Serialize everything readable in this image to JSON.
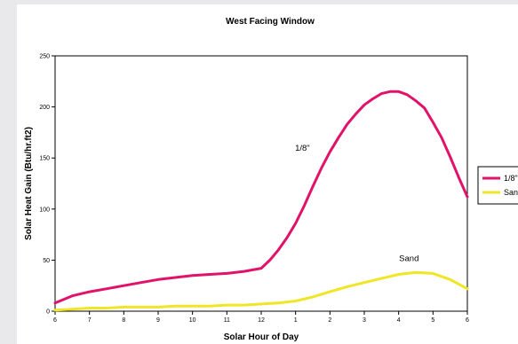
{
  "chart_data": {
    "type": "line",
    "title": "West Facing Window",
    "xlabel": "Solar Hour of Day",
    "ylabel": "Solar Heat Gain (Btu/hr.ft2)",
    "x_tick_labels": [
      "6",
      "7",
      "8",
      "9",
      "10",
      "11",
      "12",
      "1",
      "2",
      "3",
      "4",
      "5",
      "6"
    ],
    "y_ticks": [
      0,
      50,
      100,
      150,
      200,
      250
    ],
    "ylim": [
      0,
      250
    ],
    "xlim": [
      6,
      18
    ],
    "grid": false,
    "legend": {
      "placement": "right",
      "entries": [
        "1/8\"",
        "Sand"
      ]
    },
    "annotations": [
      {
        "text": "1/8\"",
        "x": 13.2,
        "y": 157
      },
      {
        "text": "Sand",
        "x": 16.3,
        "y": 49
      }
    ],
    "series": [
      {
        "name": "1/8\"",
        "color": "#e0126a",
        "x": [
          6,
          6.5,
          7,
          7.5,
          8,
          8.5,
          9,
          9.5,
          10,
          10.5,
          11,
          11.5,
          12,
          12.25,
          12.5,
          12.75,
          13,
          13.25,
          13.5,
          13.75,
          14,
          14.25,
          14.5,
          14.75,
          15,
          15.25,
          15.5,
          15.75,
          16,
          16.25,
          16.5,
          16.75,
          17,
          17.25,
          17.5,
          17.75,
          18
        ],
        "y": [
          8,
          15,
          19,
          22,
          25,
          28,
          31,
          33,
          35,
          36,
          37,
          39,
          42,
          50,
          60,
          72,
          86,
          103,
          122,
          140,
          156,
          170,
          183,
          193,
          202,
          208,
          213,
          215,
          215,
          212,
          206,
          199,
          185,
          170,
          151,
          131,
          112
        ]
      },
      {
        "name": "Sand",
        "color": "#f0e626",
        "x": [
          6,
          6.5,
          7,
          7.5,
          8,
          8.5,
          9,
          9.5,
          10,
          10.5,
          11,
          11.5,
          12,
          12.5,
          13,
          13.5,
          14,
          14.5,
          15,
          15.5,
          16,
          16.5,
          17,
          17.5,
          18
        ],
        "y": [
          1,
          2,
          3,
          3,
          4,
          4,
          4,
          5,
          5,
          5,
          6,
          6,
          7,
          8,
          10,
          14,
          19,
          24,
          28,
          32,
          36,
          38,
          37,
          31,
          22
        ]
      }
    ]
  }
}
